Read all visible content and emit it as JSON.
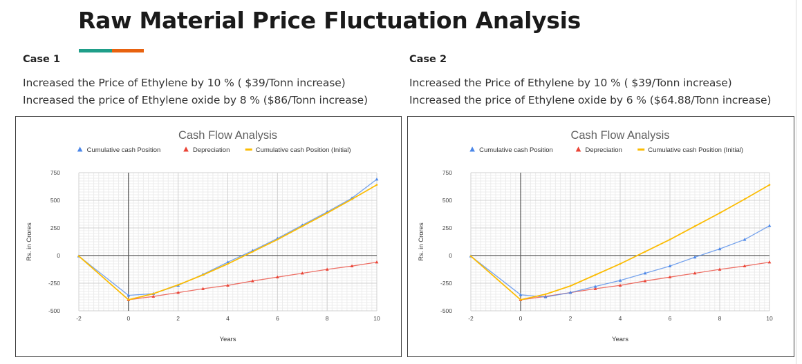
{
  "page": {
    "title": "Raw Material Price Fluctuation Analysis",
    "accent_colors": [
      "#1f9e89",
      "#e8620f"
    ]
  },
  "cases": [
    {
      "label": "Case 1",
      "lines": [
        "Increased the Price of Ethylene by 10 %  ( $39/Tonn increase)",
        "Increased the price of Ethylene oxide by 8 % ($86/Tonn increase)"
      ]
    },
    {
      "label": "Case 2",
      "lines": [
        "Increased the Price of Ethylene by 10 %  ( $39/Tonn increase)",
        "Increased the price of Ethylene oxide by 6 % ($64.88/Tonn increase)"
      ]
    }
  ],
  "chart_data": [
    {
      "type": "line",
      "title": "Cash Flow Analysis",
      "xlabel": "Years",
      "ylabel": "Rs. in Crores",
      "xlim": [
        -2,
        10
      ],
      "ylim": [
        -500,
        750
      ],
      "xticks": [
        -2,
        0,
        2,
        4,
        6,
        8,
        10
      ],
      "yticks": [
        -500,
        -250,
        0,
        250,
        500,
        750
      ],
      "grid": true,
      "legend_position": "top",
      "x": [
        -2,
        0,
        1,
        2,
        3,
        4,
        5,
        6,
        7,
        8,
        9,
        10
      ],
      "series": [
        {
          "name": "Cumulative cash Position",
          "color": "#4a86e8",
          "marker": "triangle",
          "values": [
            -5,
            -360,
            -345,
            -270,
            -170,
            -60,
            45,
            155,
            275,
            395,
            520,
            690
          ]
        },
        {
          "name": "Depreciation",
          "color": "#ea4335",
          "marker": "triangle",
          "x": [
            0,
            1,
            2,
            3,
            4,
            5,
            6,
            7,
            8,
            9,
            10
          ],
          "values": [
            -400,
            -370,
            -335,
            -300,
            -270,
            -230,
            -195,
            -160,
            -125,
            -95,
            -60
          ]
        },
        {
          "name": "Cumulative cash Position (Initial)",
          "color": "#fbbc04",
          "marker": "line",
          "values": [
            -5,
            -400,
            -345,
            -265,
            -175,
            -75,
            35,
            145,
            265,
            385,
            510,
            640
          ]
        }
      ]
    },
    {
      "type": "line",
      "title": "Cash Flow Analysis",
      "xlabel": "Years",
      "ylabel": "Rs. in Crores",
      "xlim": [
        -2,
        10
      ],
      "ylim": [
        -500,
        750
      ],
      "xticks": [
        -2,
        0,
        2,
        4,
        6,
        8,
        10
      ],
      "yticks": [
        -500,
        -250,
        0,
        250,
        500,
        750
      ],
      "grid": true,
      "legend_position": "top",
      "x": [
        -2,
        0,
        1,
        2,
        3,
        4,
        5,
        6,
        7,
        8,
        9,
        10
      ],
      "series": [
        {
          "name": "Cumulative cash Position",
          "color": "#4a86e8",
          "marker": "triangle",
          "values": [
            -5,
            -355,
            -375,
            -335,
            -280,
            -225,
            -160,
            -95,
            -15,
            60,
            145,
            270
          ]
        },
        {
          "name": "Depreciation",
          "color": "#ea4335",
          "marker": "triangle",
          "x": [
            0,
            1,
            2,
            3,
            4,
            5,
            6,
            7,
            8,
            9,
            10
          ],
          "values": [
            -400,
            -370,
            -335,
            -300,
            -270,
            -230,
            -195,
            -160,
            -125,
            -95,
            -60
          ]
        },
        {
          "name": "Cumulative cash Position (Initial)",
          "color": "#fbbc04",
          "marker": "line",
          "values": [
            -5,
            -400,
            -350,
            -275,
            -175,
            -75,
            35,
            145,
            265,
            385,
            510,
            640
          ]
        }
      ]
    }
  ]
}
